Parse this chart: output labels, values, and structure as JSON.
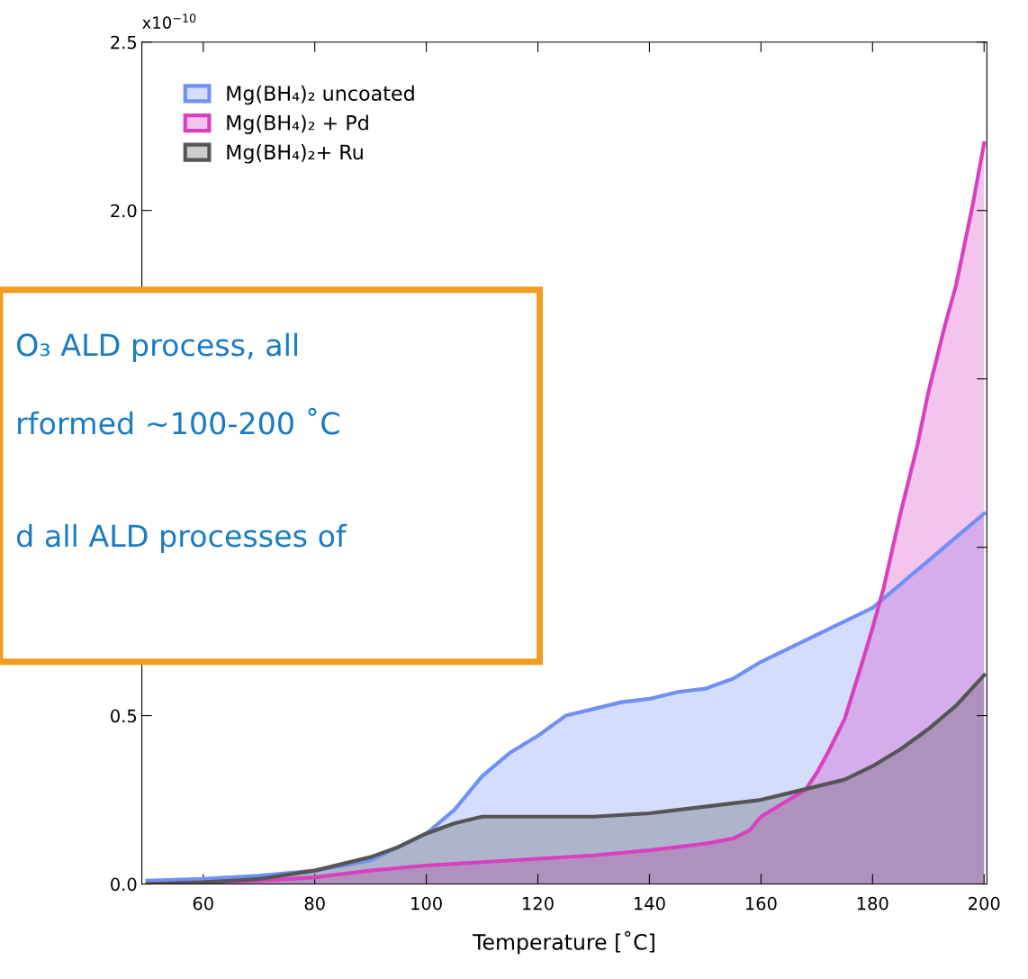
{
  "chart_data": {
    "type": "area",
    "xlabel": "Temperature [˚C]",
    "xlim": [
      49,
      200.5
    ],
    "xticks": [
      60,
      80,
      100,
      120,
      140,
      160,
      180,
      200
    ],
    "ylim": [
      0,
      2.5
    ],
    "yticks": [
      {
        "value": 0,
        "label": "0.0"
      },
      {
        "value": 0.5,
        "label": "0.5"
      },
      {
        "value": 1.0,
        "label": null
      },
      {
        "value": 1.5,
        "label": null
      },
      {
        "value": 2.0,
        "label": "2.0"
      },
      {
        "value": 2.5,
        "label": "2.5"
      }
    ],
    "grid": false,
    "legend": "top left",
    "series": [
      {
        "name": "Mg(BH₄)₂ uncoated",
        "color": "#7090f5",
        "x": [
          50,
          60,
          70,
          80,
          90,
          100,
          105,
          110,
          115,
          120,
          125,
          130,
          135,
          140,
          145,
          150,
          155,
          160,
          165,
          170,
          175,
          180,
          185,
          190,
          195,
          200
        ],
        "values": [
          0.01,
          0.015,
          0.025,
          0.04,
          0.07,
          0.15,
          0.22,
          0.32,
          0.39,
          0.44,
          0.5,
          0.52,
          0.54,
          0.55,
          0.57,
          0.58,
          0.61,
          0.66,
          0.7,
          0.74,
          0.78,
          0.82,
          0.89,
          0.96,
          1.03,
          1.1
        ]
      },
      {
        "name": "Mg(BH₄)₂ + Pd",
        "color": "#d840c0",
        "x": [
          50,
          60,
          70,
          80,
          90,
          100,
          110,
          120,
          130,
          140,
          150,
          155,
          158,
          160,
          163,
          165,
          168,
          170,
          172,
          175,
          178,
          180,
          182,
          185,
          188,
          190,
          193,
          195,
          198,
          200
        ],
        "values": [
          0,
          0.005,
          0.01,
          0.02,
          0.04,
          0.055,
          0.065,
          0.075,
          0.085,
          0.1,
          0.12,
          0.135,
          0.16,
          0.2,
          0.23,
          0.25,
          0.28,
          0.33,
          0.39,
          0.49,
          0.65,
          0.76,
          0.88,
          1.1,
          1.3,
          1.46,
          1.66,
          1.78,
          2.02,
          2.2
        ]
      },
      {
        "name": "Mg(BH₄)₂+ Ru",
        "color": "#555555",
        "x": [
          50,
          60,
          70,
          80,
          90,
          95,
          100,
          105,
          110,
          115,
          120,
          130,
          140,
          150,
          160,
          165,
          170,
          175,
          180,
          185,
          190,
          195,
          200
        ],
        "values": [
          0,
          0.005,
          0.015,
          0.04,
          0.08,
          0.11,
          0.15,
          0.18,
          0.2,
          0.2,
          0.2,
          0.2,
          0.21,
          0.23,
          0.25,
          0.27,
          0.29,
          0.31,
          0.35,
          0.4,
          0.46,
          0.53,
          0.62
        ]
      }
    ],
    "annotations": [
      "x10$^{−10}$",
      "O₃ ALD process, all",
      "rformed ~100-200 ˚C",
      "d all ALD processes of"
    ]
  }
}
